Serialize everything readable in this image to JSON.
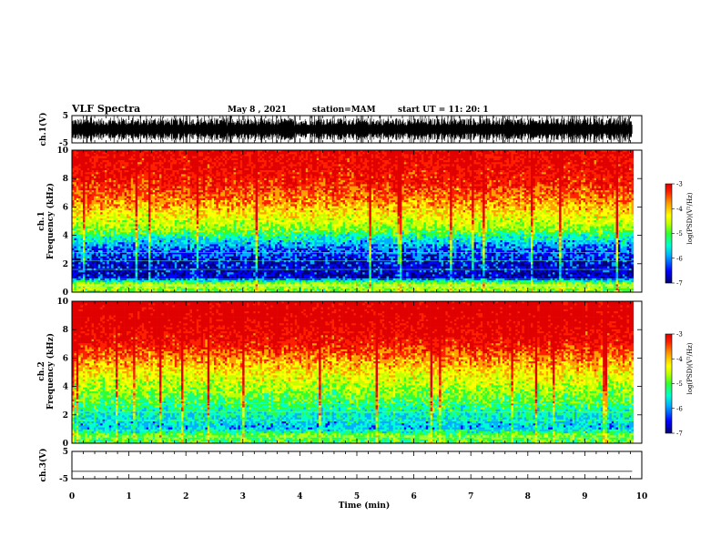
{
  "header": {
    "title": "VLF Spectra",
    "date": "May 8 , 2021",
    "station": "station=MAM",
    "start": "start UT =  11: 20: 1"
  },
  "colors": {
    "scale": [
      "#000070",
      "#0000ff",
      "#00b0ff",
      "#00ffd0",
      "#30ff30",
      "#c0ff00",
      "#ffff00",
      "#ffa000",
      "#ff2000",
      "#e00000"
    ]
  },
  "chart_data": [
    {
      "type": "line",
      "name": "waveform-ch1",
      "ylabel": "ch.1(V)",
      "yticks": [
        "5",
        "-5"
      ],
      "ylim": [
        -5,
        5
      ],
      "description_values": {
        "min": -5,
        "max": 5
      }
    },
    {
      "type": "heatmap",
      "name": "spectrogram-ch1",
      "ylabel": "ch.1\nFrequency (kHz)",
      "ylabel_line1": "ch.1",
      "ylabel_line2": "Frequency (kHz)",
      "yticks": [
        "0",
        "2",
        "4",
        "6",
        "8",
        "10"
      ],
      "ylim": [
        0,
        10
      ],
      "xlim": [
        0,
        9.83
      ],
      "colorbar": {
        "label": "log(PSD)(V²/Hz)",
        "ticks": [
          "-3",
          "-4",
          "-5",
          "-6",
          "-7"
        ],
        "range": [
          -7,
          -3
        ]
      },
      "profile_log_psd": [
        {
          "freq_khz": 0.2,
          "value": -5.0
        },
        {
          "freq_khz": 0.5,
          "value": -4.6
        },
        {
          "freq_khz": 1.0,
          "value": -6.6
        },
        {
          "freq_khz": 2.0,
          "value": -6.5
        },
        {
          "freq_khz": 3.0,
          "value": -6.2
        },
        {
          "freq_khz": 3.8,
          "value": -5.6
        },
        {
          "freq_khz": 4.5,
          "value": -4.9
        },
        {
          "freq_khz": 5.5,
          "value": -4.4
        },
        {
          "freq_khz": 6.5,
          "value": -3.9
        },
        {
          "freq_khz": 8.0,
          "value": -3.4
        },
        {
          "freq_khz": 10.0,
          "value": -3.2
        }
      ]
    },
    {
      "type": "heatmap",
      "name": "spectrogram-ch2",
      "ylabel_line1": "ch.2",
      "ylabel_line2": "Frequency (kHz)",
      "yticks": [
        "0",
        "2",
        "4",
        "6",
        "8",
        "10"
      ],
      "ylim": [
        0,
        10
      ],
      "xlim": [
        0,
        9.83
      ],
      "colorbar": {
        "label": "log(PSD)(V²/Hz)",
        "ticks": [
          "-3",
          "-4",
          "-5",
          "-6",
          "-7"
        ],
        "range": [
          -7,
          -3
        ]
      },
      "profile_log_psd": [
        {
          "freq_khz": 0.2,
          "value": -5.2
        },
        {
          "freq_khz": 0.5,
          "value": -4.9
        },
        {
          "freq_khz": 1.0,
          "value": -5.9
        },
        {
          "freq_khz": 2.0,
          "value": -5.6
        },
        {
          "freq_khz": 3.0,
          "value": -5.2
        },
        {
          "freq_khz": 4.0,
          "value": -4.8
        },
        {
          "freq_khz": 5.0,
          "value": -4.4
        },
        {
          "freq_khz": 6.0,
          "value": -3.9
        },
        {
          "freq_khz": 7.0,
          "value": -3.4
        },
        {
          "freq_khz": 8.5,
          "value": -3.1
        },
        {
          "freq_khz": 10.0,
          "value": -3.0
        }
      ]
    },
    {
      "type": "line",
      "name": "waveform-ch3",
      "ylabel": "ch.3(V)",
      "yticks": [
        "5",
        "-5"
      ],
      "ylim": [
        -5,
        5
      ],
      "values": [
        -2.3,
        -2.3
      ]
    }
  ],
  "xaxis": {
    "label": "Time  (min)",
    "ticks": [
      "0",
      "1",
      "2",
      "3",
      "4",
      "5",
      "6",
      "7",
      "8",
      "9",
      "10"
    ],
    "xlim": [
      0,
      10
    ]
  }
}
